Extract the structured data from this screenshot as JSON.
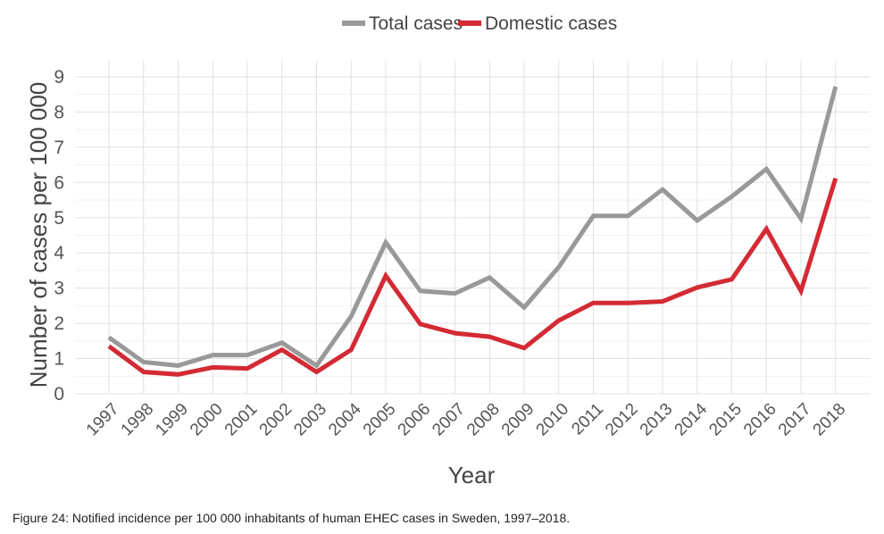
{
  "chart_data": {
    "type": "line",
    "title": "",
    "xlabel": "Year",
    "ylabel": "Number of cases per 100 000",
    "ylim": [
      0,
      9
    ],
    "yticks": [
      "0",
      "1",
      "2",
      "3",
      "4",
      "5",
      "6",
      "7",
      "8",
      "9"
    ],
    "grid": true,
    "legend_position": "top",
    "categories": [
      "1997",
      "1998",
      "1999",
      "2000",
      "2001",
      "2002",
      "2003",
      "2004",
      "2005",
      "2006",
      "2007",
      "2008",
      "2009",
      "2010",
      "2011",
      "2012",
      "2013",
      "2014",
      "2015",
      "2016",
      "2017",
      "2018"
    ],
    "series": [
      {
        "name": "Total cases",
        "color": "#999999",
        "values": [
          1.6,
          0.9,
          0.8,
          1.1,
          1.1,
          1.45,
          0.8,
          2.2,
          4.3,
          2.92,
          2.85,
          3.3,
          2.45,
          3.6,
          5.05,
          5.05,
          5.8,
          4.92,
          5.6,
          6.38,
          4.97,
          8.72
        ]
      },
      {
        "name": "Domestic cases",
        "color": "#d42a34",
        "values": [
          1.35,
          0.62,
          0.55,
          0.75,
          0.72,
          1.25,
          0.62,
          1.25,
          3.35,
          1.98,
          1.72,
          1.62,
          1.3,
          2.08,
          2.58,
          2.58,
          2.62,
          3.02,
          3.25,
          4.68,
          2.92,
          6.12
        ]
      }
    ]
  },
  "caption": "Figure 24: Notified incidence per 100 000 inhabitants of human EHEC cases in Sweden, 1997–2018."
}
